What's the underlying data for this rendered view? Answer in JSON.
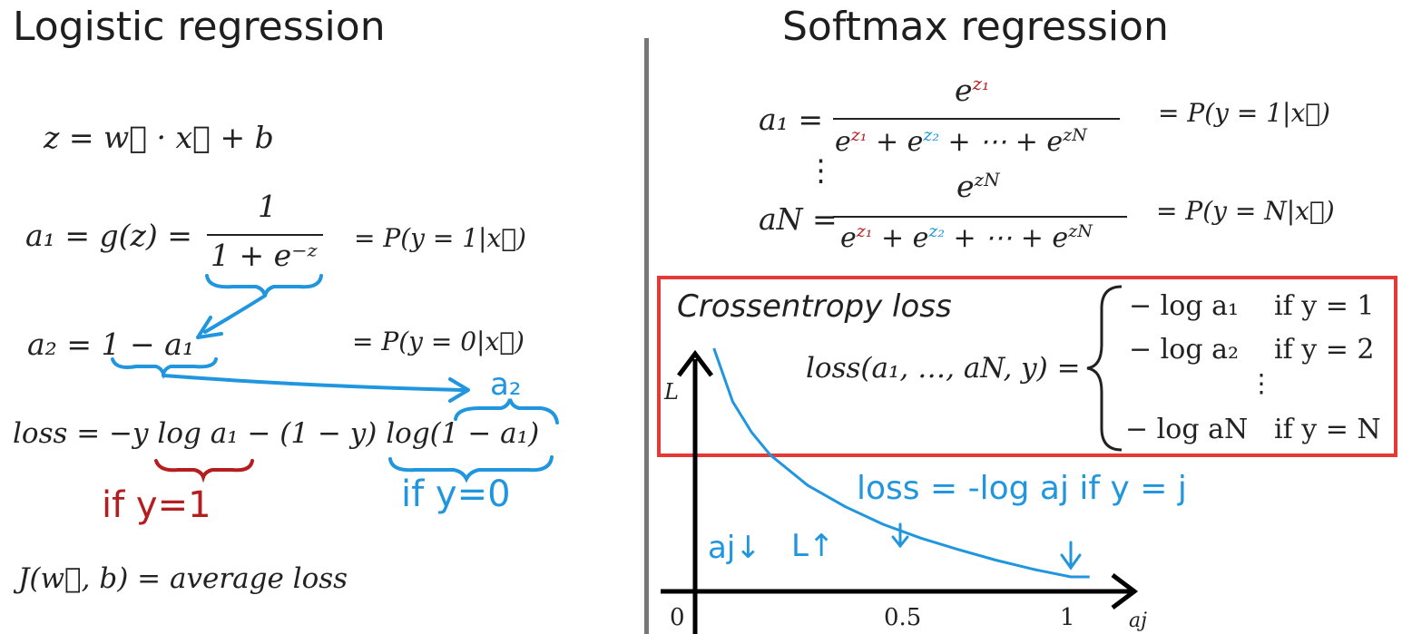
{
  "left": {
    "title": "Logistic regression",
    "eq_z": "z = w⃗ · x⃗ + b",
    "eq_a1_lhs": "a₁ = g(z) =",
    "eq_a1_num": "1",
    "eq_a1_den": "1 + e⁻ᶻ",
    "eq_a1_prob": "= P(y = 1|x⃗)",
    "eq_a2": "a₂ = 1 − a₁",
    "eq_a2_prob": "= P(y = 0|x⃗)",
    "eq_loss": "loss = −y log a₁ − (1 − y) log(1 − a₁)",
    "note_if_y1": "if y=1",
    "note_if_y0": "if y=0",
    "note_a2": "a₂",
    "eq_J": "J(w⃗, b) = average loss"
  },
  "right": {
    "title": "Softmax regression",
    "a1_lhs": "a₁ =",
    "a1_num_base": "e",
    "a1_num_sub": "z₁",
    "a1_prob": "= P(y = 1|x⃗)",
    "den_e1": "e",
    "den_z1": "z₁",
    "den_plus1": " + e",
    "den_z2": "z₂",
    "den_rest": " + ⋯ + e",
    "den_zn": "zN",
    "vdots": "⋮",
    "aN_lhs": "aN =",
    "aN_num_base": "e",
    "aN_num_sub": "zN",
    "aN_prob": "= P(y = N|x⃗)",
    "box_title": "Crossentropy loss",
    "loss_lhs": "loss(a₁, …, aN, y) =",
    "cases": [
      {
        "expr": "− log a₁",
        "cond": "if y = 1"
      },
      {
        "expr": "− log a₂",
        "cond": "if y = 2"
      },
      {
        "expr": "⋮",
        "cond": ""
      },
      {
        "expr": "− log aN",
        "cond": "if y = N"
      }
    ],
    "axis_y": "L",
    "axis_x": "aj",
    "ticks": [
      "0",
      "0.5",
      "1"
    ],
    "note_loss": "loss = -log aj  if y = j",
    "note_aj_down": "aj↓",
    "note_L_up": "L↑"
  },
  "colors": {
    "red_box": "#e53935",
    "blue_ink": "#1f96de",
    "red_ink": "#b41e1e",
    "divider": "#777777"
  },
  "chart_data": {
    "type": "line",
    "title": "",
    "xlabel": "aj",
    "ylabel": "L",
    "x_ticks": [
      "0",
      "0.5",
      "1"
    ],
    "xlim": [
      0,
      1.1
    ],
    "series": [
      {
        "x": [
          0.05,
          0.1,
          0.15,
          0.2,
          0.3,
          0.4,
          0.5,
          0.6,
          0.7,
          0.8,
          0.9,
          1.0
        ],
        "y": [
          3.0,
          2.3,
          1.9,
          1.6,
          1.2,
          0.92,
          0.69,
          0.51,
          0.36,
          0.22,
          0.1,
          0.0
        ]
      }
    ]
  }
}
